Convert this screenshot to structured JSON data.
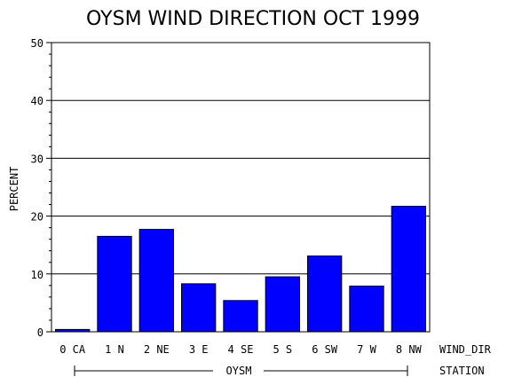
{
  "chart_data": {
    "type": "bar",
    "title": "OYSM WIND DIRECTION OCT 1999",
    "ylabel": "PERCENT",
    "x_axis_name": "WIND_DIR",
    "group_axis_name": "STATION",
    "group_label": "OYSM",
    "categories": [
      "0 CA",
      "1 N",
      "2 NE",
      "3 E",
      "4 SE",
      "5 S",
      "6 SW",
      "7 W",
      "8 NW"
    ],
    "values": [
      0.4,
      16.5,
      17.7,
      8.3,
      5.4,
      9.5,
      13.1,
      7.9,
      21.7
    ],
    "ylim": [
      0,
      50
    ],
    "yticks": [
      0,
      10,
      20,
      30,
      40,
      50
    ],
    "grid": true,
    "bar_color": "#0000ff"
  }
}
